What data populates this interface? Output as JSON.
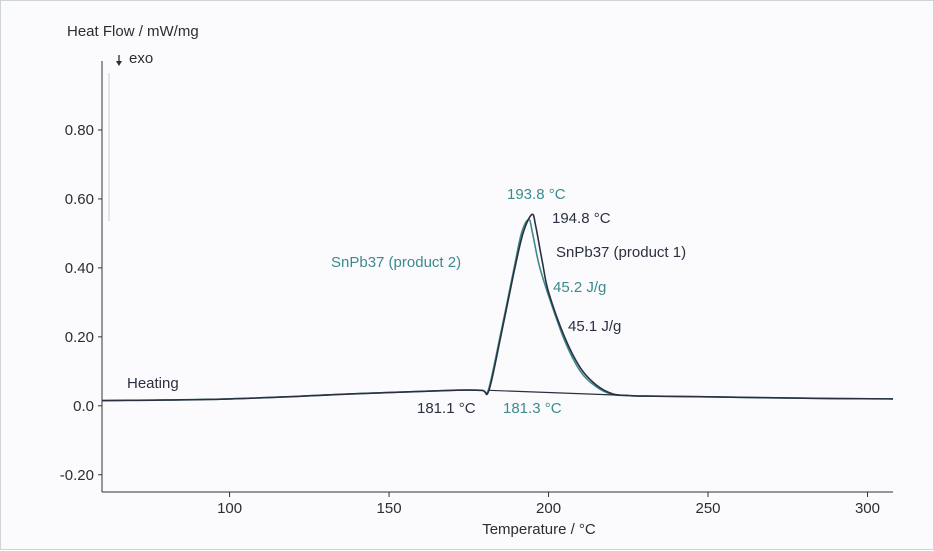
{
  "chart_data": {
    "type": "line",
    "y_axis_label": "Heat Flow / mW/mg",
    "exo_label": "exo",
    "x_axis_label": "Temperature / °C",
    "xlim": [
      60,
      308
    ],
    "ylim": [
      -0.25,
      1.0
    ],
    "x_ticks": [
      100,
      150,
      200,
      250,
      300
    ],
    "x_tick_labels": [
      "100",
      "150",
      "200",
      "250",
      "300"
    ],
    "y_ticks": [
      -0.2,
      0.0,
      0.2,
      0.4,
      0.6,
      0.8
    ],
    "y_tick_labels": [
      "-0.20",
      "0.0",
      "0.20",
      "0.40",
      "0.60",
      "0.80"
    ],
    "grid": false,
    "colors": {
      "product1": "#2b3040",
      "product2": "#3c8a8c",
      "axis": "#333333"
    },
    "series": [
      {
        "name": "SnPb37 (product 1)",
        "x": [
          60,
          100,
          140,
          170,
          179,
          181.3,
          185,
          189,
          192,
          194.8,
          196,
          198,
          200,
          205,
          210,
          215,
          220,
          225,
          230,
          250,
          280,
          308
        ],
        "y": [
          0.015,
          0.02,
          0.035,
          0.045,
          0.045,
          0.045,
          0.2,
          0.38,
          0.5,
          0.555,
          0.52,
          0.42,
          0.33,
          0.2,
          0.11,
          0.06,
          0.035,
          0.03,
          0.028,
          0.026,
          0.022,
          0.02
        ]
      },
      {
        "name": "SnPb37 (product 2)",
        "x": [
          60,
          100,
          140,
          170,
          179,
          181.1,
          185,
          189,
          191.5,
          193.8,
          195,
          197,
          200,
          205,
          210,
          215,
          220,
          225,
          230,
          250,
          280,
          308
        ],
        "y": [
          0.015,
          0.02,
          0.035,
          0.045,
          0.045,
          0.045,
          0.21,
          0.39,
          0.5,
          0.54,
          0.5,
          0.41,
          0.32,
          0.19,
          0.1,
          0.055,
          0.033,
          0.03,
          0.028,
          0.026,
          0.022,
          0.02
        ]
      }
    ],
    "annotations": {
      "heating": "Heating",
      "onset_p2": "181.1 °C",
      "onset_p1": "181.3 °C",
      "peak_p2": "193.8 °C",
      "peak_p1": "194.8 °C",
      "name_p2": "SnPb37 (product 2)",
      "name_p1": "SnPb37 (product 1)",
      "enthalpy_p2": "45.2 J/g",
      "enthalpy_p1": "45.1 J/g"
    }
  }
}
